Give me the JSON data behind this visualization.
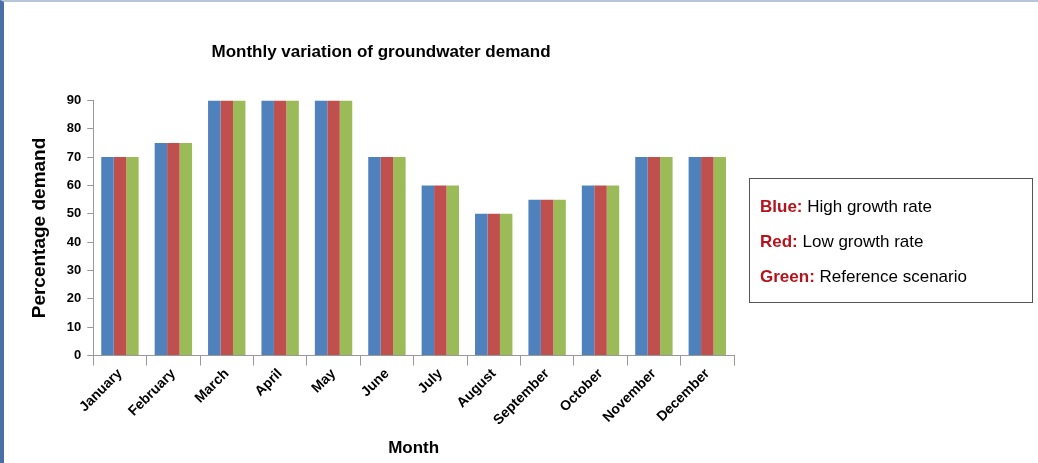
{
  "chart_data": {
    "type": "bar",
    "title": "Monthly variation of groundwater demand",
    "xlabel": "Month",
    "ylabel": "Percentage demand",
    "categories": [
      "January",
      "February",
      "March",
      "April",
      "May",
      "June",
      "July",
      "August",
      "September",
      "October",
      "November",
      "December"
    ],
    "series": [
      {
        "name": "Blue: High growth rate",
        "color": "#4f81bd",
        "values": [
          70,
          75,
          90,
          90,
          90,
          70,
          60,
          50,
          55,
          60,
          70,
          70
        ]
      },
      {
        "name": "Red: Low growth rate",
        "color": "#c0504d",
        "values": [
          70,
          75,
          90,
          90,
          90,
          70,
          60,
          50,
          55,
          60,
          70,
          70
        ]
      },
      {
        "name": "Green: Reference scenario",
        "color": "#9bbb59",
        "values": [
          70,
          75,
          90,
          90,
          90,
          70,
          60,
          50,
          55,
          60,
          70,
          70
        ]
      }
    ],
    "ylim": [
      0,
      90
    ],
    "yticks": [
      0,
      10,
      20,
      30,
      40,
      50,
      60,
      70,
      80,
      90
    ],
    "grid": false,
    "legend": "right"
  }
}
